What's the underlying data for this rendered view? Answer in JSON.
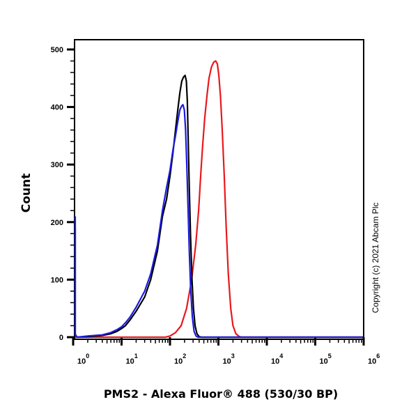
{
  "chart_data": {
    "type": "line",
    "subtype": "flow-cytometry-histogram",
    "title": "",
    "xlabel": "PMS2 - Alexa Fluor® 488 (530/30 BP)",
    "ylabel": "Count",
    "x_scale": "log",
    "xlim": [
      1,
      1000000
    ],
    "ylim": [
      0,
      500
    ],
    "y_ticks": [
      0,
      100,
      200,
      300,
      400,
      500
    ],
    "x_ticks": [
      {
        "base": "10",
        "exp": "0",
        "value": 1
      },
      {
        "base": "10",
        "exp": "1",
        "value": 10
      },
      {
        "base": "10",
        "exp": "2",
        "value": 100
      },
      {
        "base": "10",
        "exp": "3",
        "value": 1000
      },
      {
        "base": "10",
        "exp": "4",
        "value": 10000
      },
      {
        "base": "10",
        "exp": "5",
        "value": 100000
      },
      {
        "base": "10",
        "exp": "6",
        "value": 1000000
      }
    ],
    "grid": false,
    "legend": null,
    "series": [
      {
        "name": "black",
        "color": "#000000",
        "peak": {
          "x": 200,
          "y": 455
        },
        "points": [
          [
            1.03,
            190
          ],
          [
            1.06,
            5
          ],
          [
            1.2,
            0
          ],
          [
            2,
            1
          ],
          [
            4,
            3
          ],
          [
            6,
            6
          ],
          [
            8,
            10
          ],
          [
            10,
            15
          ],
          [
            12,
            20
          ],
          [
            15,
            30
          ],
          [
            20,
            45
          ],
          [
            30,
            70
          ],
          [
            40,
            100
          ],
          [
            55,
            150
          ],
          [
            70,
            210
          ],
          [
            85,
            240
          ],
          [
            100,
            280
          ],
          [
            115,
            320
          ],
          [
            130,
            360
          ],
          [
            145,
            395
          ],
          [
            160,
            425
          ],
          [
            175,
            445
          ],
          [
            190,
            452
          ],
          [
            205,
            455
          ],
          [
            218,
            445
          ],
          [
            228,
            410
          ],
          [
            238,
            340
          ],
          [
            250,
            260
          ],
          [
            265,
            180
          ],
          [
            285,
            100
          ],
          [
            305,
            50
          ],
          [
            330,
            20
          ],
          [
            360,
            6
          ],
          [
            400,
            1
          ],
          [
            450,
            0
          ],
          [
            1000000,
            0
          ]
        ]
      },
      {
        "name": "blue",
        "color": "#1a1adf",
        "peak": {
          "x": 185,
          "y": 404
        },
        "points": [
          [
            1.02,
            210
          ],
          [
            1.06,
            5
          ],
          [
            1.2,
            0
          ],
          [
            2,
            2
          ],
          [
            4,
            4
          ],
          [
            6,
            8
          ],
          [
            8,
            13
          ],
          [
            10,
            18
          ],
          [
            12,
            25
          ],
          [
            15,
            35
          ],
          [
            20,
            52
          ],
          [
            30,
            80
          ],
          [
            40,
            110
          ],
          [
            55,
            160
          ],
          [
            70,
            220
          ],
          [
            85,
            260
          ],
          [
            100,
            290
          ],
          [
            115,
            325
          ],
          [
            130,
            350
          ],
          [
            145,
            375
          ],
          [
            160,
            395
          ],
          [
            175,
            402
          ],
          [
            185,
            404
          ],
          [
            198,
            395
          ],
          [
            210,
            360
          ],
          [
            222,
            300
          ],
          [
            235,
            230
          ],
          [
            250,
            150
          ],
          [
            268,
            80
          ],
          [
            290,
            35
          ],
          [
            315,
            10
          ],
          [
            345,
            2
          ],
          [
            380,
            0
          ],
          [
            1000000,
            0
          ]
        ]
      },
      {
        "name": "red",
        "color": "#e8181c",
        "peak": {
          "x": 900,
          "y": 480
        },
        "points": [
          [
            1,
            0
          ],
          [
            80,
            0
          ],
          [
            100,
            2
          ],
          [
            130,
            8
          ],
          [
            170,
            20
          ],
          [
            220,
            50
          ],
          [
            280,
            100
          ],
          [
            340,
            160
          ],
          [
            390,
            220
          ],
          [
            430,
            280
          ],
          [
            470,
            330
          ],
          [
            520,
            380
          ],
          [
            580,
            420
          ],
          [
            640,
            450
          ],
          [
            720,
            470
          ],
          [
            800,
            478
          ],
          [
            880,
            480
          ],
          [
            950,
            475
          ],
          [
            1020,
            455
          ],
          [
            1100,
            420
          ],
          [
            1200,
            360
          ],
          [
            1320,
            280
          ],
          [
            1450,
            190
          ],
          [
            1600,
            110
          ],
          [
            1800,
            50
          ],
          [
            2000,
            20
          ],
          [
            2300,
            6
          ],
          [
            2700,
            1
          ],
          [
            3000,
            0
          ],
          [
            1000000,
            0
          ]
        ]
      }
    ]
  },
  "annotations": {
    "copyright": "Copyright (c) 2021 Abcam Plc"
  }
}
